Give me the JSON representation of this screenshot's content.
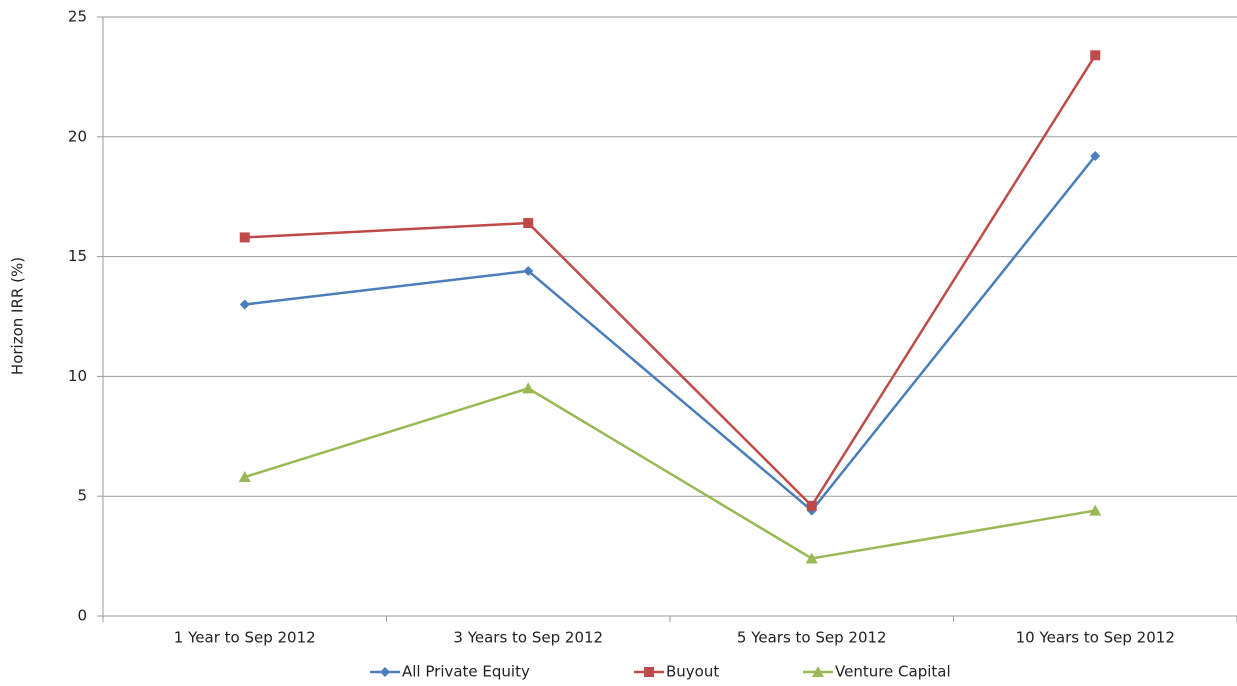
{
  "chart_data": {
    "type": "line",
    "y_label": "Horizon IRR (%)",
    "categories": [
      "1 Year to Sep 2012",
      "3 Years to Sep 2012",
      "5 Years to Sep 2012",
      "10 Years to Sep 2012"
    ],
    "series": [
      {
        "name": "All Private Equity",
        "color": "#4a7ebb",
        "marker": "diamond",
        "values": [
          13.0,
          14.4,
          4.4,
          19.2
        ]
      },
      {
        "name": "Buyout",
        "color": "#be4b48",
        "marker": "square",
        "values": [
          15.8,
          16.4,
          4.6,
          23.4
        ]
      },
      {
        "name": "Venture Capital",
        "color": "#98b954",
        "marker": "triangle",
        "values": [
          5.8,
          9.5,
          2.4,
          4.4
        ]
      }
    ],
    "ylim": [
      0,
      25
    ],
    "yticks": [
      0,
      5,
      10,
      15,
      20,
      25
    ],
    "grid": true,
    "legend": "bottom"
  }
}
